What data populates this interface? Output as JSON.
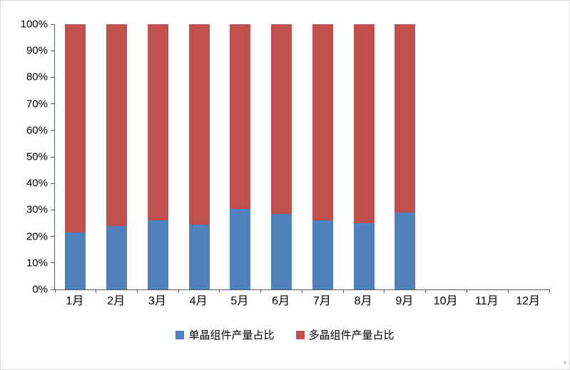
{
  "chart_data": {
    "type": "bar",
    "stacked": true,
    "percent": true,
    "title": "",
    "xlabel": "",
    "ylabel": "",
    "categories": [
      "1月",
      "2月",
      "3月",
      "4月",
      "5月",
      "6月",
      "7月",
      "8月",
      "9月",
      "10月",
      "11月",
      "12月"
    ],
    "series": [
      {
        "name": "单晶组件产量占比",
        "color": "#4F81BD",
        "values": [
          21.5,
          24,
          26,
          24.5,
          30.5,
          28.5,
          26,
          25,
          29,
          null,
          null,
          null
        ]
      },
      {
        "name": "多晶组件产量占比",
        "color": "#C0504D",
        "values": [
          78.5,
          76,
          74,
          75.5,
          69.5,
          71.5,
          74,
          75,
          71,
          null,
          null,
          null
        ]
      }
    ],
    "ylim": [
      0,
      100
    ],
    "ytick_step": 10,
    "ytick_labels": [
      "0%",
      "10%",
      "20%",
      "30%",
      "40%",
      "50%",
      "60%",
      "70%",
      "80%",
      "90%",
      "100%"
    ],
    "grid": false,
    "legend_position": "bottom"
  },
  "footnote": "*"
}
